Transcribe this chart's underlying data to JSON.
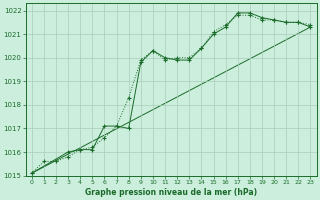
{
  "title": "Graphe pression niveau de la mer (hPa)",
  "background_color": "#cceedd",
  "grid_color": "#aaccbb",
  "line_color": "#1a6b2a",
  "xlim": [
    -0.5,
    23.5
  ],
  "ylim": [
    1015,
    1022.3
  ],
  "xticks": [
    0,
    1,
    2,
    3,
    4,
    5,
    6,
    7,
    8,
    9,
    10,
    11,
    12,
    13,
    14,
    15,
    16,
    17,
    18,
    19,
    20,
    21,
    22,
    23
  ],
  "yticks": [
    1015,
    1016,
    1017,
    1018,
    1019,
    1020,
    1021,
    1022
  ],
  "series1_x": [
    0,
    1,
    2,
    3,
    4,
    5,
    6,
    7,
    8,
    9,
    10,
    11,
    12,
    13,
    14,
    15,
    16,
    17,
    18,
    19,
    20,
    21,
    22,
    23
  ],
  "series1_y": [
    1015.1,
    1015.6,
    1015.6,
    1015.8,
    1016.1,
    1016.2,
    1016.6,
    1017.1,
    1018.3,
    1019.9,
    1020.3,
    1019.9,
    1020.0,
    1020.0,
    1020.4,
    1021.1,
    1021.4,
    1021.8,
    1021.8,
    1021.6,
    1021.6,
    1021.5,
    1021.5,
    1021.4
  ],
  "series2_x": [
    0,
    3,
    4,
    5,
    6,
    7,
    8,
    9,
    10,
    11,
    12,
    13,
    14,
    15,
    16,
    17,
    18,
    19,
    20,
    21,
    22,
    23
  ],
  "series2_y": [
    1015.1,
    1016.0,
    1016.1,
    1016.1,
    1017.1,
    1017.1,
    1017.0,
    1019.8,
    1020.3,
    1020.0,
    1019.9,
    1019.9,
    1020.4,
    1021.0,
    1021.3,
    1021.9,
    1021.9,
    1021.7,
    1021.6,
    1021.5,
    1021.5,
    1021.3
  ],
  "series3_x": [
    0,
    23
  ],
  "series3_y": [
    1015.1,
    1021.3
  ]
}
